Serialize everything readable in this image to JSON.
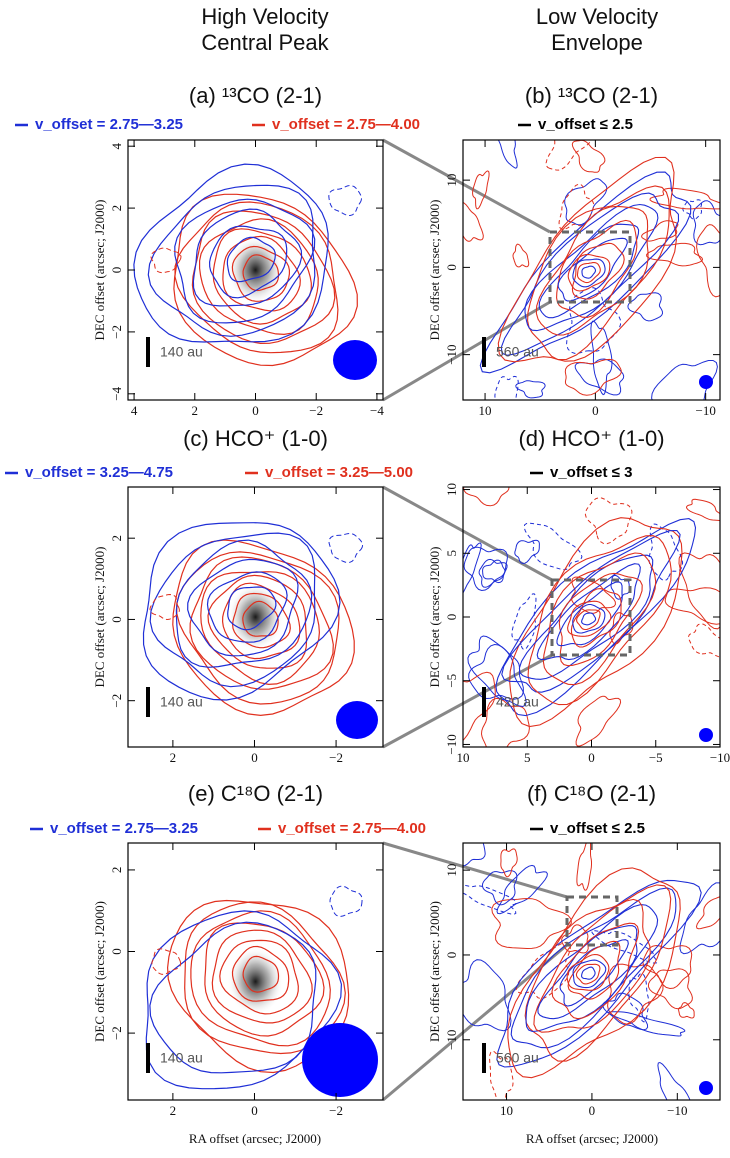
{
  "column_headers": [
    "High Velocity\nCentral Peak",
    "Low Velocity\nEnvelope"
  ],
  "y_axis_label": "DEC offset (arcsec; J2000)",
  "x_axis_label": "RA offset (arcsec; J2000)",
  "panels": [
    {
      "title": "(a) ¹³CO (2-1)",
      "legend": [
        {
          "text": "v_offset = 2.75—3.25",
          "color": "#1f2fd6"
        },
        {
          "text": "v_offset = 2.75—4.00",
          "color": "#e0301e"
        }
      ],
      "scale_bar": "140 au",
      "xlim": [
        4.2,
        -4.2
      ],
      "ylim": [
        -4.2,
        4.2
      ],
      "xticks": [
        4,
        2,
        0,
        {
          "value": -2,
          "label": "−2"
        },
        {
          "value": -4,
          "label": "−4"
        }
      ],
      "yticks": [
        4,
        2,
        0,
        {
          "value": -2,
          "label": "−2"
        },
        {
          "value": -4,
          "label": "−4"
        }
      ]
    },
    {
      "title": "(b) ¹³CO (2-1)",
      "legend": [
        {
          "text": "v_offset ≤ 2.5",
          "color": "#000000"
        }
      ],
      "scale_bar": "560 au",
      "xlim": [
        12,
        -11.3
      ],
      "ylim": [
        -15.2,
        14.6
      ],
      "xticks": [
        10,
        0,
        {
          "value": -10,
          "label": "−10"
        }
      ],
      "yticks": [
        10,
        0,
        {
          "value": -10,
          "label": "−10"
        }
      ]
    },
    {
      "title": "(c) HCO⁺ (1-0)",
      "legend": [
        {
          "text": "v_offset = 3.25—4.75",
          "color": "#1f2fd6"
        },
        {
          "text": "v_offset = 3.25—5.00",
          "color": "#e0301e"
        }
      ],
      "scale_bar": "140 au",
      "xlim": [
        3.1,
        -3.15
      ],
      "ylim": [
        -3.14,
        3.26
      ],
      "xticks": [
        2,
        0,
        {
          "value": -2,
          "label": "−2"
        }
      ],
      "yticks": [
        2,
        0,
        {
          "value": -2,
          "label": "−2"
        }
      ]
    },
    {
      "title": "(d) HCO⁺ (1-0)",
      "legend": [
        {
          "text": "v_offset ≤ 3",
          "color": "#000000"
        }
      ],
      "scale_bar": "420 au",
      "xlim": [
        10,
        -10
      ],
      "ylim": [
        -10.2,
        10.2
      ],
      "xticks": [
        10,
        5,
        0,
        {
          "value": -5,
          "label": "−5"
        },
        {
          "value": -10,
          "label": "−10"
        }
      ],
      "yticks": [
        10,
        5,
        0,
        {
          "value": -5,
          "label": "−5"
        },
        {
          "value": -10,
          "label": "−10"
        }
      ]
    },
    {
      "title": "(e) C¹⁸O (2-1)",
      "legend": [
        {
          "text": "v_offset = 2.75—3.25",
          "color": "#1f2fd6"
        },
        {
          "text": "v_offset = 2.75—4.00",
          "color": "#e0301e"
        }
      ],
      "scale_bar": "140 au",
      "xlim": [
        3.1,
        -3.15
      ],
      "ylim": [
        -3.64,
        2.66
      ],
      "xticks": [
        2,
        0,
        {
          "value": -2,
          "label": "−2"
        }
      ],
      "yticks": [
        2,
        0,
        {
          "value": -2,
          "label": "−2"
        }
      ]
    },
    {
      "title": "(f) C¹⁸O (2-1)",
      "legend": [
        {
          "text": "v_offset ≤ 2.5",
          "color": "#000000"
        }
      ],
      "scale_bar": "560 au",
      "xlim": [
        15.1,
        -15
      ],
      "ylim": [
        -17.1,
        13.2
      ],
      "xticks": [
        10,
        0,
        {
          "value": -10,
          "label": "−10"
        }
      ],
      "yticks": [
        10,
        0,
        {
          "value": -10,
          "label": "−10"
        }
      ]
    }
  ]
}
